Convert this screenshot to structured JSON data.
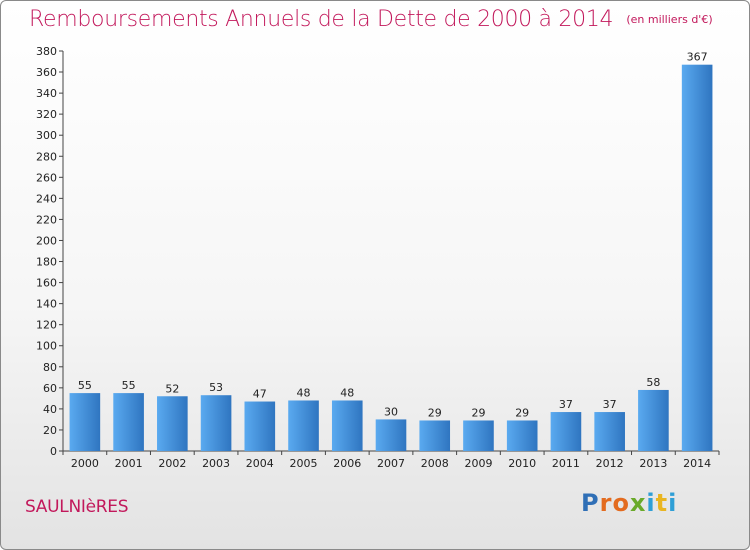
{
  "chart_data": {
    "type": "bar",
    "title": "Remboursements Annuels de la Dette de 2000 à 2014",
    "unit_note": "(en milliers d'€)",
    "xlabel": "",
    "ylabel": "",
    "categories": [
      "2000",
      "2001",
      "2002",
      "2003",
      "2004",
      "2005",
      "2006",
      "2007",
      "2008",
      "2009",
      "2010",
      "2011",
      "2012",
      "2013",
      "2014"
    ],
    "values": [
      55,
      55,
      52,
      53,
      47,
      48,
      48,
      30,
      29,
      29,
      29,
      37,
      37,
      58,
      367
    ],
    "value_labels": [
      "55",
      "55",
      "52",
      "53",
      "47",
      "48",
      "48",
      "30",
      "29",
      "29",
      "29",
      "37",
      "37",
      "58",
      "367"
    ],
    "ylim": [
      0,
      380
    ],
    "yticks": [
      0,
      20,
      40,
      60,
      80,
      100,
      120,
      140,
      160,
      180,
      200,
      220,
      240,
      260,
      280,
      300,
      320,
      340,
      360,
      380
    ],
    "grid": false,
    "bar_color": "#3f8fd8",
    "bar_color_top": "#5aaaf0",
    "bar_color_bottom": "#2f75c0"
  },
  "footer": {
    "place": "SAULNIèRES"
  },
  "brand": {
    "letters": [
      "P",
      "r",
      "o",
      "x",
      "i",
      "t",
      "i"
    ]
  }
}
